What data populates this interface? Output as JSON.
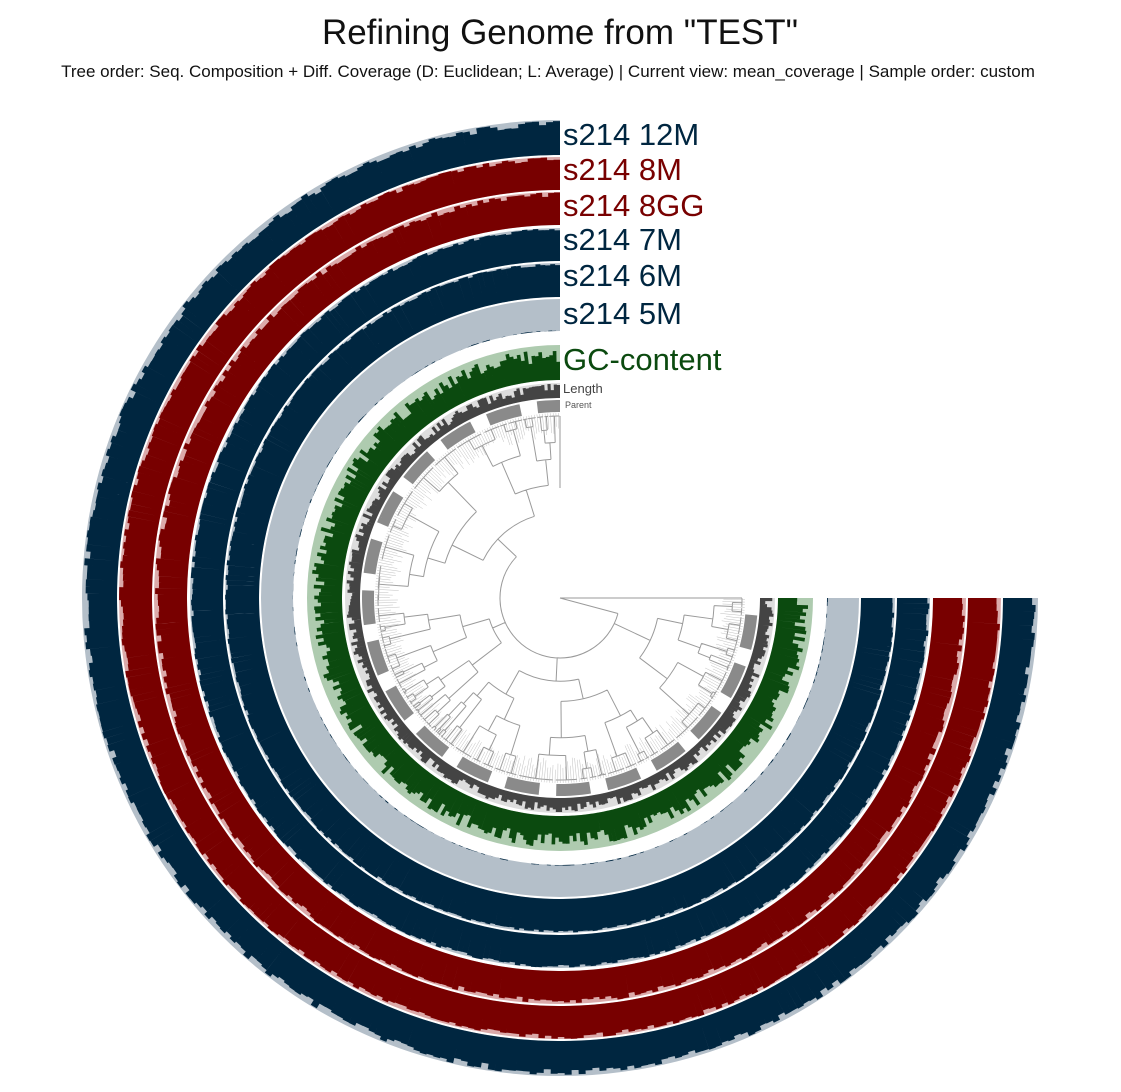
{
  "header": {
    "title": "Refining Genome from \"TEST\"",
    "subtitle": "Tree order: Seq. Composition + Diff. Coverage (D: Euclidean; L: Average) | Current view: mean_coverage | Sample order: custom"
  },
  "layers": [
    {
      "label": "s214 12M",
      "color": "#002640",
      "background": "#b4bfc9"
    },
    {
      "label": "s214 8M",
      "color": "#780000",
      "background": "#dbaaaa"
    },
    {
      "label": "s214 8GG",
      "color": "#780000",
      "background": "#dbaaaa"
    },
    {
      "label": "s214 7M",
      "color": "#002640",
      "background": "#b4bfc9"
    },
    {
      "label": "s214 6M",
      "color": "#002640",
      "background": "#b4bfc9"
    },
    {
      "label": "s214 5M",
      "color": "#002640",
      "background": "#b4bfc9"
    },
    {
      "label": "GC-content",
      "color": "#0b4a0f",
      "background": "#aecbaf"
    }
  ],
  "inner_layers": [
    {
      "label": "Length",
      "color": "#444444"
    },
    {
      "label": "Parent",
      "color": "#555555"
    }
  ]
}
